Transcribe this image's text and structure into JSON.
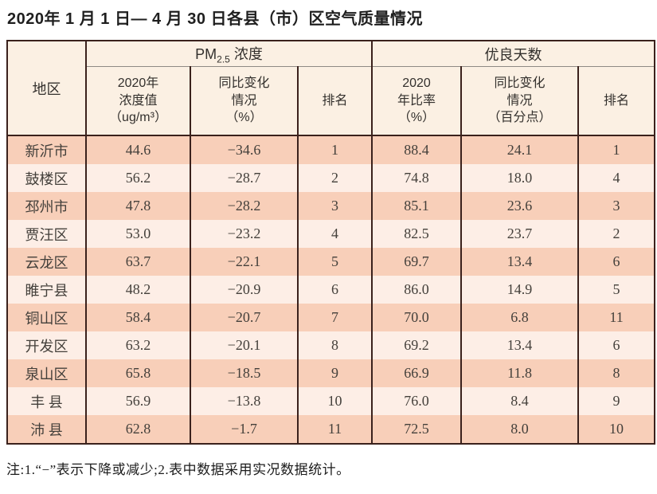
{
  "title": "2020年 1 月 1 日— 4 月 30 日各县（市）区空气质量情况",
  "note": "注:1.“−”表示下降或减少;2.表中数据采用实况数据统计。",
  "colors": {
    "border_dark": "#3a211c",
    "header_bg": "#fbf0e3",
    "row_odd_bg": "#f8cfb9",
    "row_even_bg": "#fdeee6"
  },
  "table": {
    "region_header": "地区",
    "pm_group": {
      "prefix": "PM",
      "sub": "2.5",
      "suffix": " 浓度"
    },
    "days_group": "优良天数",
    "subheaders": [
      "2020年\n浓度值\n（ug/m³）",
      "同比变化\n情况\n（%）",
      "排名",
      "2020\n年比率\n（%）",
      "同比变化\n情况\n（百分点）",
      "排名"
    ],
    "rows": [
      [
        "新沂市",
        "44.6",
        "−34.6",
        "1",
        "88.4",
        "24.1",
        "1"
      ],
      [
        "鼓楼区",
        "56.2",
        "−28.7",
        "2",
        "74.8",
        "18.0",
        "4"
      ],
      [
        "邳州市",
        "47.8",
        "−28.2",
        "3",
        "85.1",
        "23.6",
        "3"
      ],
      [
        "贾汪区",
        "53.0",
        "−23.2",
        "4",
        "82.5",
        "23.7",
        "2"
      ],
      [
        "云龙区",
        "63.7",
        "−22.1",
        "5",
        "69.7",
        "13.4",
        "6"
      ],
      [
        "睢宁县",
        "48.2",
        "−20.9",
        "6",
        "86.0",
        "14.9",
        "5"
      ],
      [
        "铜山区",
        "58.4",
        "−20.7",
        "7",
        "70.0",
        "6.8",
        "11"
      ],
      [
        "开发区",
        "63.2",
        "−20.1",
        "8",
        "69.2",
        "13.4",
        "6"
      ],
      [
        "泉山区",
        "65.8",
        "−18.5",
        "9",
        "66.9",
        "11.8",
        "8"
      ],
      [
        "丰 县",
        "56.9",
        "−13.8",
        "10",
        "76.0",
        "8.4",
        "9"
      ],
      [
        "沛 县",
        "62.8",
        "−1.7",
        "11",
        "72.5",
        "8.0",
        "10"
      ]
    ],
    "column_names": [
      "region",
      "pm-2020-value",
      "pm-yoy-change",
      "pm-rank",
      "days-2020-rate",
      "days-yoy-change",
      "days-rank"
    ]
  }
}
